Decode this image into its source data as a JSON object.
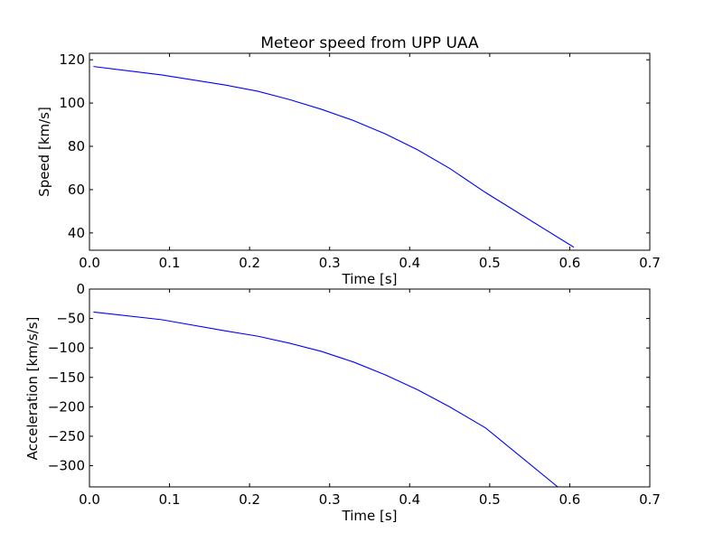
{
  "chart_data": [
    {
      "type": "line",
      "title": "Meteor speed from  UPP UAA",
      "xlabel": "Time [s]",
      "ylabel": "Speed [km/s]",
      "xlim": [
        0.0,
        0.7
      ],
      "ylim": [
        32,
        123
      ],
      "xticks": [
        0.0,
        0.1,
        0.2,
        0.3,
        0.4,
        0.5,
        0.6,
        0.7
      ],
      "xtick_labels": [
        "0.0",
        "0.1",
        "0.2",
        "0.3",
        "0.4",
        "0.5",
        "0.6",
        "0.7"
      ],
      "yticks": [
        40,
        60,
        80,
        100,
        120
      ],
      "ytick_labels": [
        "40",
        "60",
        "80",
        "100",
        "120"
      ],
      "grid": false,
      "series": [
        {
          "color": "#0000ff",
          "x": [
            0.005,
            0.09,
            0.17,
            0.21,
            0.25,
            0.29,
            0.33,
            0.37,
            0.41,
            0.45,
            0.495,
            0.605
          ],
          "y": [
            116.9,
            113.0,
            108.3,
            105.5,
            101.6,
            97.1,
            91.9,
            85.7,
            78.4,
            69.8,
            58.6,
            33.4
          ]
        }
      ]
    },
    {
      "type": "line",
      "title": "",
      "xlabel": "Time [s]",
      "ylabel": "Acceleration [km/s/s]",
      "xlim": [
        0.0,
        0.7
      ],
      "ylim": [
        -336,
        0
      ],
      "xticks": [
        0.0,
        0.1,
        0.2,
        0.3,
        0.4,
        0.5,
        0.6,
        0.7
      ],
      "xtick_labels": [
        "0.0",
        "0.1",
        "0.2",
        "0.3",
        "0.4",
        "0.5",
        "0.6",
        "0.7"
      ],
      "yticks": [
        0,
        -50,
        -100,
        -150,
        -200,
        -250,
        -300
      ],
      "ytick_labels": [
        "0",
        "−50",
        "−100",
        "−150",
        "−200",
        "−250",
        "−300"
      ],
      "grid": false,
      "series": [
        {
          "color": "#0000ff",
          "x": [
            0.005,
            0.09,
            0.17,
            0.21,
            0.25,
            0.29,
            0.33,
            0.37,
            0.41,
            0.45,
            0.495,
            0.585
          ],
          "y": [
            -39,
            -52,
            -71,
            -80,
            -92,
            -106,
            -124,
            -146,
            -171,
            -200,
            -236,
            -336
          ]
        }
      ]
    }
  ]
}
